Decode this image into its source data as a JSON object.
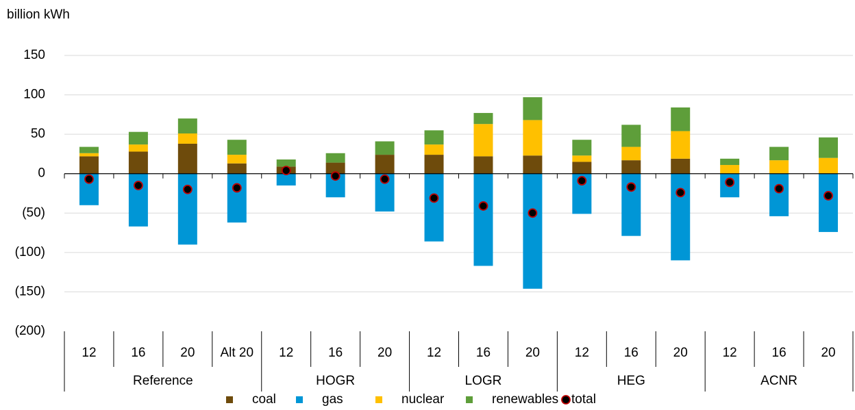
{
  "chart_data": {
    "type": "bar",
    "stacked": true,
    "y_label": "billion kWh",
    "categories": [
      "12",
      "16",
      "20",
      "Alt 20",
      "12",
      "16",
      "20",
      "12",
      "16",
      "20",
      "12",
      "16",
      "20",
      "12",
      "16",
      "20"
    ],
    "groups": [
      {
        "name": "Reference",
        "span": 4
      },
      {
        "name": "HOGR",
        "span": 3
      },
      {
        "name": "LOGR",
        "span": 3
      },
      {
        "name": "HEG",
        "span": 3
      },
      {
        "name": "ACNR",
        "span": 3
      }
    ],
    "series": [
      {
        "name": "coal",
        "color": "#6e4b0c",
        "type": "bar",
        "values": [
          22,
          28,
          38,
          13,
          9,
          14,
          24,
          24,
          22,
          23,
          15,
          17,
          19,
          0,
          0,
          0
        ]
      },
      {
        "name": "gas",
        "color": "#0096d6",
        "type": "bar",
        "values": [
          -40,
          -67,
          -90,
          -62,
          -15,
          -30,
          -48,
          -86,
          -117,
          -146,
          -51,
          -79,
          -110,
          -30,
          -54,
          -74
        ]
      },
      {
        "name": "nuclear",
        "color": "#ffc000",
        "type": "bar",
        "values": [
          4,
          9,
          13,
          11,
          0,
          0,
          0,
          13,
          41,
          45,
          8,
          17,
          35,
          11,
          17,
          20
        ]
      },
      {
        "name": "renewables",
        "color": "#5e9e3a",
        "type": "bar",
        "values": [
          8,
          16,
          19,
          19,
          9,
          12,
          17,
          18,
          14,
          29,
          20,
          28,
          30,
          8,
          17,
          26
        ]
      },
      {
        "name": "total",
        "color": "#000000",
        "edge_color": "#c00000",
        "type": "scatter",
        "values": [
          -7,
          -15,
          -20,
          -18,
          4,
          -3,
          -7,
          -31,
          -41,
          -50,
          -9,
          -17,
          -24,
          -11,
          -19,
          -28
        ]
      }
    ],
    "ylim": [
      -200,
      150
    ],
    "yticks": [
      {
        "value": -200,
        "label": "(200)"
      },
      {
        "value": -150,
        "label": "(150)"
      },
      {
        "value": -100,
        "label": "(100)"
      },
      {
        "value": -50,
        "label": "(50)"
      },
      0,
      50,
      100,
      150
    ],
    "grid": true,
    "legend": "bottom"
  }
}
